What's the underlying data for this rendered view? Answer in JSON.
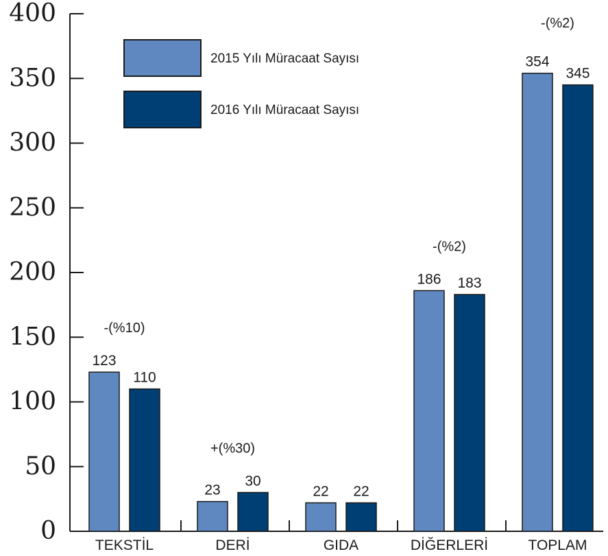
{
  "chart_data": {
    "type": "bar",
    "categories": [
      "TEKSTİL",
      "DERİ",
      "GIDA",
      "DİĞERLERİ",
      "TOPLAM"
    ],
    "series": [
      {
        "name": "2015 Yılı Müracaat Sayısı",
        "values": [
          123,
          23,
          22,
          186,
          354
        ],
        "color": "#5f88c1"
      },
      {
        "name": "2016 Yılı Müracaat Sayısı",
        "values": [
          110,
          30,
          22,
          183,
          345
        ],
        "color": "#003f74"
      }
    ],
    "value_labels": [
      [
        "123",
        "23",
        "22",
        "186",
        "354"
      ],
      [
        "110",
        "30",
        "22",
        "183",
        "345"
      ]
    ],
    "change_annotations": [
      "-(%10)",
      "+(%30)",
      "",
      "-(%2)",
      "-(%2)"
    ],
    "ylim": [
      0,
      400
    ],
    "yticks": [
      "0",
      "50",
      "100",
      "150",
      "200",
      "250",
      "300",
      "350",
      "400"
    ],
    "grid": false,
    "legend_position": "top-left",
    "title": "",
    "xlabel": "",
    "ylabel": ""
  }
}
